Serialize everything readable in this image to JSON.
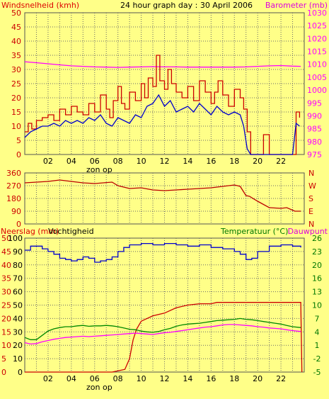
{
  "title": "24 hour graph day : 30 April 2006",
  "colors": {
    "background": "#ffff88",
    "plot_bg": "#ffff88",
    "grid": "#6a6a6a",
    "axis_text_dark": "#000000",
    "wind": "#cc0000",
    "wind_avg": "#0000cc",
    "barometer": "#ff00ff",
    "direction": "#bb0000",
    "humidity": "#0000cc",
    "rain": "#cc0000",
    "temperature": "#008800",
    "dewpoint": "#ff00ff",
    "label_green": "#007700",
    "label_red": "#dd0000",
    "label_magenta": "#dd00dd"
  },
  "chart_data": [
    {
      "type": "line",
      "panel": "wind",
      "left_label": "Windsnelheid (kmh)",
      "right_label": "Barometer (mb)",
      "x_ticks": [
        "02",
        "04",
        "06",
        "08",
        "10",
        "12",
        "14",
        "16",
        "18",
        "20",
        "22"
      ],
      "x_annotation": "zon op",
      "x_range": [
        0,
        24
      ],
      "y_left": [
        0,
        5,
        10,
        15,
        20,
        25,
        30,
        35,
        40,
        45,
        50
      ],
      "y_right": [
        "975",
        "980",
        "985",
        "990",
        "995",
        "1000",
        "1005",
        "1010",
        "1015",
        "1020",
        "1025",
        "1030"
      ],
      "ylim_left": [
        0,
        50
      ],
      "ylim_right": [
        975,
        1030
      ],
      "series": [
        {
          "name": "Barometer (mb)",
          "axis": "right",
          "x": [
            0,
            1,
            2,
            3,
            4,
            5,
            6,
            7,
            8,
            9,
            10,
            11,
            12,
            13,
            14,
            15,
            16,
            17,
            18,
            19,
            20,
            21,
            22,
            23,
            23.7
          ],
          "y": [
            1011,
            1010.6,
            1010.2,
            1009.8,
            1009.4,
            1009.2,
            1009,
            1008.9,
            1008.8,
            1008.9,
            1009,
            1009.1,
            1009,
            1009,
            1008.9,
            1008.9,
            1008.9,
            1008.9,
            1008.9,
            1009,
            1009.2,
            1009.4,
            1009.5,
            1009.3,
            1009.2
          ]
        },
        {
          "axis": "left",
          "x": [
            0,
            0.3,
            0.6,
            1,
            1.5,
            2,
            2.5,
            3,
            3.5,
            4,
            4.5,
            5,
            5.5,
            6,
            6.5,
            7,
            7.3,
            7.6,
            8,
            8.3,
            8.6,
            9,
            9.5,
            10,
            10.3,
            10.6,
            11,
            11.3,
            11.6,
            12,
            12.3,
            12.6,
            13,
            13.5,
            14,
            14.5,
            15,
            15.5,
            16,
            16.3,
            16.6,
            17,
            17.5,
            18,
            18.5,
            18.8,
            19.1,
            19.4,
            19.7,
            20,
            20.5,
            21,
            21.5,
            22,
            22.5,
            23,
            23.3,
            23.6
          ],
          "y": [
            8,
            11,
            9,
            12,
            13,
            14,
            12,
            16,
            14,
            17,
            15,
            14,
            18,
            15,
            21,
            16,
            13,
            19,
            24,
            18,
            16,
            22,
            19,
            25,
            20,
            27,
            24,
            35,
            26,
            23,
            30,
            25,
            22,
            20,
            24,
            19,
            26,
            22,
            18,
            22,
            26,
            21,
            17,
            23,
            20,
            16,
            8,
            0,
            0,
            0,
            7,
            0,
            0,
            0,
            0,
            0,
            15,
            13
          ]
        },
        {
          "axis": "left",
          "x": [
            0,
            0.5,
            1,
            1.5,
            2,
            2.5,
            3,
            3.5,
            4,
            4.5,
            5,
            5.5,
            6,
            6.5,
            7,
            7.5,
            8,
            8.5,
            9,
            9.5,
            10,
            10.5,
            11,
            11.5,
            12,
            12.5,
            13,
            13.5,
            14,
            14.5,
            15,
            15.5,
            16,
            16.5,
            17,
            17.5,
            18,
            18.5,
            18.8,
            19.1,
            19.4,
            19.7,
            20,
            21,
            22,
            23,
            23.3,
            23.6
          ],
          "y": [
            6,
            8,
            9,
            10,
            10,
            11,
            10,
            12,
            11,
            12,
            11,
            13,
            12,
            14,
            11,
            10,
            13,
            12,
            11,
            14,
            13,
            17,
            18,
            21,
            17,
            19,
            15,
            16,
            17,
            15,
            18,
            16,
            14,
            17,
            15,
            14,
            15,
            14,
            10,
            2,
            0,
            0,
            0,
            0,
            0,
            0,
            11,
            10
          ]
        }
      ]
    },
    {
      "type": "line",
      "panel": "direction",
      "y_left": [
        "360",
        "270",
        "180",
        "90",
        "0"
      ],
      "y_right": [
        "N",
        "W",
        "S",
        "E",
        "N"
      ],
      "ylim": [
        0,
        360
      ],
      "series": [
        {
          "x": [
            0,
            1,
            2,
            3,
            4,
            5,
            6,
            7,
            7.5,
            8,
            8.5,
            9,
            10,
            11,
            12,
            13,
            14,
            15,
            16,
            17,
            18,
            18.5,
            19,
            19.3,
            20,
            21,
            22,
            22.5,
            23.2,
            23.7
          ],
          "y": [
            290,
            295,
            300,
            310,
            300,
            290,
            285,
            292,
            295,
            270,
            260,
            250,
            255,
            240,
            235,
            240,
            245,
            250,
            255,
            265,
            275,
            265,
            200,
            195,
            160,
            115,
            110,
            115,
            90,
            90
          ]
        }
      ]
    },
    {
      "type": "line",
      "panel": "rain_humidity_temperature",
      "left_label_1": "Neerslag (mm)",
      "left_label_2": "Vochtigheid",
      "right_label_1": "Temperatuur (°C)",
      "right_label_2": "Dauwpunt",
      "x_ticks": [
        "02",
        "04",
        "06",
        "08",
        "10",
        "12",
        "14",
        "16",
        "18",
        "20",
        "22"
      ],
      "x_annotation": "zon op",
      "y_left_outer": [
        "0",
        "5",
        "10",
        "15",
        "20",
        "25",
        "30",
        "35",
        "40",
        "45",
        "50"
      ],
      "y_left_inner": [
        "0",
        "10",
        "20",
        "30",
        "40",
        "50",
        "60",
        "70",
        "80",
        "90",
        "100"
      ],
      "y_right": [
        "-5",
        "-2",
        "1",
        "4",
        "7",
        "10",
        "13",
        "16",
        "20",
        "23",
        "26"
      ],
      "ylim_rain": [
        0,
        50
      ],
      "ylim_humidity": [
        0,
        100
      ],
      "ylim_temp": [
        -5,
        26
      ],
      "series": [
        {
          "name": "Vochtigheid",
          "x": [
            0,
            0.5,
            1,
            1.5,
            2,
            2.5,
            3,
            3.5,
            4,
            4.5,
            5,
            5.5,
            6,
            6.5,
            7,
            7.5,
            8,
            8.5,
            9,
            10,
            11,
            12,
            13,
            14,
            15,
            16,
            17,
            18,
            18.5,
            19,
            19.5,
            20,
            21,
            22,
            23,
            23.7
          ],
          "y": [
            91,
            94,
            94,
            92,
            90,
            88,
            85,
            84,
            83,
            84,
            86,
            85,
            82,
            83,
            84,
            86,
            90,
            93,
            95,
            96,
            95,
            96,
            95,
            94,
            95,
            93,
            92,
            90,
            88,
            84,
            85,
            90,
            94,
            95,
            94,
            93
          ]
        },
        {
          "name": "Neerslag (mm)",
          "x": [
            0,
            7.5,
            8.6,
            9,
            9.3,
            9.6,
            10,
            11,
            12,
            13,
            14,
            15,
            16,
            16.5,
            17,
            18,
            19,
            20,
            21,
            22,
            23,
            23.7,
            23.8
          ],
          "y": [
            0,
            0,
            1,
            5,
            12,
            16,
            19,
            21,
            22,
            24,
            25,
            25.5,
            25.5,
            26,
            26,
            26,
            26,
            26,
            26,
            26,
            26,
            26,
            0
          ]
        },
        {
          "name": "Temperatuur (°C)",
          "x": [
            0,
            0.5,
            1,
            1.5,
            2,
            2.5,
            3,
            3.5,
            4,
            4.5,
            5,
            5.5,
            6,
            6.5,
            7,
            7.5,
            8,
            8.5,
            9,
            9.5,
            10,
            10.5,
            11,
            11.5,
            12,
            12.5,
            13,
            13.5,
            14,
            14.5,
            15,
            15.5,
            16,
            16.5,
            17,
            17.5,
            18,
            18.5,
            19,
            19.5,
            20,
            20.5,
            21,
            21.5,
            22,
            22.5,
            23,
            23.7
          ],
          "y": [
            3,
            2.5,
            2.5,
            3.5,
            4.5,
            5,
            5.3,
            5.5,
            5.5,
            5.7,
            5.8,
            5.6,
            5.7,
            5.7,
            5.8,
            5.7,
            5.5,
            5.2,
            4.9,
            4.8,
            4.5,
            4.3,
            4.2,
            4.4,
            4.8,
            5.1,
            5.6,
            5.9,
            6.1,
            6.2,
            6.3,
            6.5,
            6.7,
            6.9,
            7,
            7.1,
            7.2,
            7.4,
            7.2,
            7.1,
            6.9,
            6.7,
            6.5,
            6.3,
            6.1,
            5.8,
            5.5,
            5.3
          ]
        },
        {
          "name": "Dauwpunt",
          "x": [
            0,
            0.5,
            1,
            1.5,
            2,
            2.5,
            3,
            3.5,
            4,
            4.5,
            5,
            5.5,
            6,
            6.5,
            7,
            7.5,
            8,
            8.5,
            9,
            9.5,
            10,
            10.5,
            11,
            11.5,
            12,
            12.5,
            13,
            13.5,
            14,
            14.5,
            15,
            15.5,
            16,
            16.5,
            17,
            17.5,
            18,
            18.5,
            19,
            19.5,
            20,
            20.5,
            21,
            21.5,
            22,
            22.5,
            23,
            23.7
          ],
          "y": [
            1.8,
            1.5,
            1.6,
            2,
            2.3,
            2.6,
            2.8,
            3,
            3.1,
            3.2,
            3.3,
            3.2,
            3.3,
            3.4,
            3.5,
            3.6,
            3.7,
            3.8,
            3.9,
            4,
            3.9,
            3.8,
            3.7,
            3.9,
            4.1,
            4.2,
            4.4,
            4.6,
            4.8,
            5,
            5.2,
            5.4,
            5.5,
            5.7,
            5.9,
            6,
            6,
            5.9,
            5.8,
            5.7,
            5.5,
            5.4,
            5.2,
            5.1,
            5,
            4.8,
            4.6,
            4.4
          ]
        }
      ]
    }
  ]
}
